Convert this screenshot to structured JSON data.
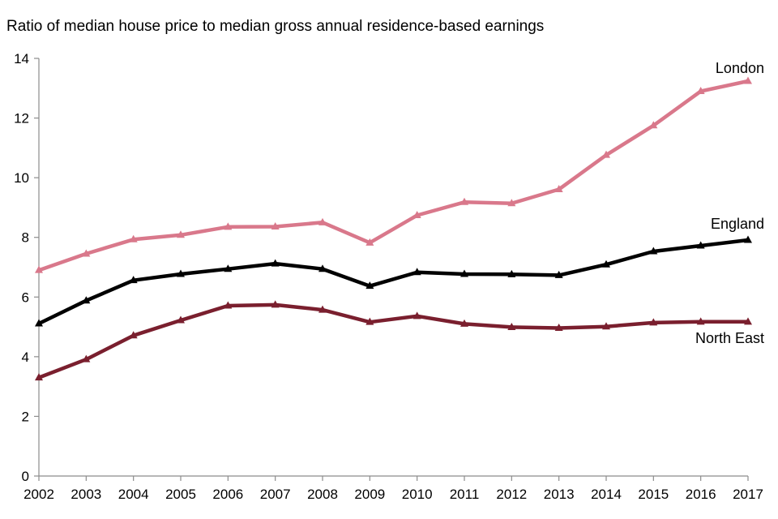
{
  "chart_data": {
    "type": "line",
    "title": "Ratio of median house price to median gross annual residence-based earnings",
    "xlabel": "",
    "ylabel": "",
    "ylim": [
      0,
      14
    ],
    "y_ticks": [
      "0",
      "2",
      "4",
      "6",
      "8",
      "10",
      "12",
      "14"
    ],
    "y_tick_values": [
      0,
      2,
      4,
      6,
      8,
      10,
      12,
      14
    ],
    "grid": false,
    "legend": "inline labels at line ends",
    "categories": [
      "2002",
      "2003",
      "2004",
      "2005",
      "2006",
      "2007",
      "2008",
      "2009",
      "2010",
      "2011",
      "2012",
      "2013",
      "2014",
      "2015",
      "2016",
      "2017"
    ],
    "series": [
      {
        "name": "London",
        "color": "#d9788b",
        "values": [
          6.9,
          7.45,
          7.93,
          8.08,
          8.35,
          8.36,
          8.5,
          7.82,
          8.74,
          9.18,
          9.14,
          9.61,
          10.76,
          11.75,
          12.9,
          13.24
        ]
      },
      {
        "name": "England",
        "color": "#000000",
        "values": [
          5.11,
          5.88,
          6.56,
          6.77,
          6.94,
          7.12,
          6.94,
          6.37,
          6.83,
          6.77,
          6.76,
          6.73,
          7.09,
          7.53,
          7.72,
          7.91
        ]
      },
      {
        "name": "North East",
        "color": "#7a1f2e",
        "values": [
          3.3,
          3.91,
          4.71,
          5.22,
          5.71,
          5.74,
          5.57,
          5.16,
          5.36,
          5.1,
          4.99,
          4.96,
          5.01,
          5.14,
          5.17,
          5.17
        ]
      }
    ]
  }
}
